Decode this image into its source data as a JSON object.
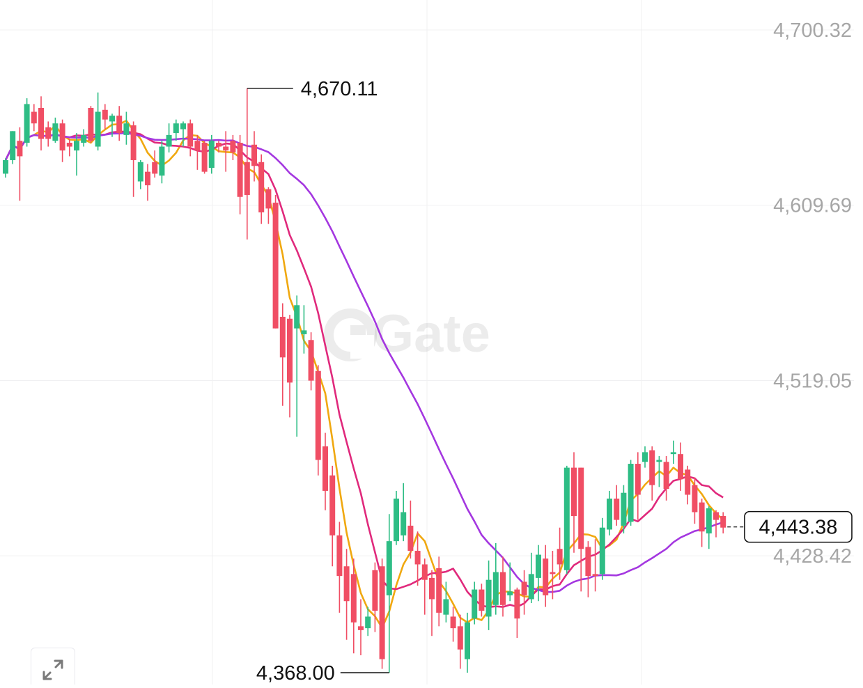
{
  "watermark": "Gate",
  "price_axis_labels": [
    "4,700.32",
    "4,609.69",
    "4,519.05",
    "4,428.42"
  ],
  "high_marker": "4,670.11",
  "low_marker": "4,368.00",
  "current_price": "4,443.38",
  "icons": {
    "expand": "expand-arrows-icon",
    "logo": "gate-logo-icon"
  },
  "colors": {
    "up": "#2ebd85",
    "down": "#f04e64",
    "ma_short": "#f0a80f",
    "ma_mid": "#e0297c",
    "ma_long": "#a437e0",
    "grid": "#f0f0f2",
    "axis_text": "#a6a6a6"
  },
  "chart_data": {
    "type": "candlestick",
    "ylim": [
      4368.0,
      4700.32
    ],
    "y_ticks": [
      4700.32,
      4609.69,
      4519.05,
      4428.42
    ],
    "high": 4670.11,
    "low": 4368.0,
    "last": 4443.38,
    "candles": [
      [
        4626,
        4633,
        4624,
        4634
      ],
      [
        4633,
        4648,
        4631,
        4648
      ],
      [
        4643,
        4635,
        4612,
        4650
      ],
      [
        4642,
        4662,
        4640,
        4665
      ],
      [
        4658,
        4652,
        4648,
        4662
      ],
      [
        4660,
        4644,
        4638,
        4666
      ],
      [
        4650,
        4644,
        4640,
        4653
      ],
      [
        4643,
        4652,
        4642,
        4655
      ],
      [
        4652,
        4638,
        4632,
        4654
      ],
      [
        4642,
        4640,
        4635,
        4644
      ],
      [
        4638,
        4643,
        4625,
        4647
      ],
      [
        4642,
        4646,
        4640,
        4649
      ],
      [
        4660,
        4643,
        4642,
        4661
      ],
      [
        4640,
        4658,
        4638,
        4668
      ],
      [
        4659,
        4654,
        4649,
        4662
      ],
      [
        4653,
        4656,
        4645,
        4657
      ],
      [
        4656,
        4647,
        4643,
        4661
      ],
      [
        4646,
        4652,
        4641,
        4658
      ],
      [
        4651,
        4633,
        4614,
        4653
      ],
      [
        4622,
        4632,
        4618,
        4633
      ],
      [
        4627,
        4620,
        4612,
        4631
      ],
      [
        4632,
        4626,
        4624,
        4638
      ],
      [
        4625,
        4640,
        4621,
        4643
      ],
      [
        4640,
        4646,
        4637,
        4652
      ],
      [
        4647,
        4652,
        4643,
        4654
      ],
      [
        4649,
        4652,
        4640,
        4653
      ],
      [
        4652,
        4640,
        4635,
        4654
      ],
      [
        4643,
        4638,
        4628,
        4646
      ],
      [
        4642,
        4627,
        4626,
        4643
      ],
      [
        4629,
        4643,
        4626,
        4646
      ],
      [
        4642,
        4640,
        4637,
        4643
      ],
      [
        4640,
        4638,
        4627,
        4648
      ],
      [
        4643,
        4637,
        4633,
        4646
      ],
      [
        4642,
        4614,
        4605,
        4646
      ],
      [
        4632,
        4615,
        4592,
        4670.11
      ],
      [
        4641,
        4630,
        4622,
        4648
      ],
      [
        4632,
        4606,
        4600,
        4636
      ],
      [
        4618,
        4608,
        4600,
        4619
      ],
      [
        4611,
        4546,
        4546,
        4615
      ],
      [
        4552,
        4531,
        4506,
        4559
      ],
      [
        4551,
        4518,
        4500,
        4553
      ],
      [
        4546,
        4558,
        4490,
        4563
      ],
      [
        4543,
        4545,
        4533,
        4558
      ],
      [
        4540,
        4519,
        4514,
        4544
      ],
      [
        4524,
        4478,
        4470,
        4527
      ],
      [
        4485,
        4462,
        4452,
        4492
      ],
      [
        4470,
        4439,
        4423,
        4475
      ],
      [
        4439,
        4418,
        4399,
        4446
      ],
      [
        4423,
        4405,
        4385,
        4432
      ],
      [
        4419,
        4394,
        4378,
        4427
      ],
      [
        4392,
        4390,
        4377,
        4406
      ],
      [
        4391,
        4397,
        4387,
        4402
      ],
      [
        4421,
        4400,
        4389,
        4425
      ],
      [
        4423,
        4375,
        4370,
        4427
      ],
      [
        4408,
        4436,
        4368,
        4450
      ],
      [
        4436,
        4458,
        4434,
        4462
      ],
      [
        4439,
        4451,
        4436,
        4466
      ],
      [
        4444,
        4431,
        4427,
        4457
      ],
      [
        4431,
        4424,
        4413,
        4441
      ],
      [
        4424,
        4416,
        4398,
        4427
      ],
      [
        4417,
        4406,
        4387,
        4421
      ],
      [
        4422,
        4399,
        4392,
        4428
      ],
      [
        4398,
        4406,
        4394,
        4415
      ],
      [
        4397,
        4391,
        4384,
        4402
      ],
      [
        4392,
        4380,
        4370,
        4398
      ],
      [
        4375,
        4394,
        4368,
        4399
      ],
      [
        4396,
        4411,
        4393,
        4415
      ],
      [
        4411,
        4400,
        4397,
        4414
      ],
      [
        4397,
        4416,
        4390,
        4426
      ],
      [
        4403,
        4420,
        4398,
        4435
      ],
      [
        4420,
        4403,
        4397,
        4428
      ],
      [
        4408,
        4410,
        4405,
        4425
      ],
      [
        4411,
        4396,
        4386,
        4412
      ],
      [
        4415,
        4408,
        4398,
        4421
      ],
      [
        4406,
        4419,
        4404,
        4430
      ],
      [
        4417,
        4429,
        4405,
        4434
      ],
      [
        4427,
        4408,
        4402,
        4434
      ],
      [
        4420,
        4419,
        4406,
        4431
      ],
      [
        4432,
        4424,
        4416,
        4443
      ],
      [
        4421,
        4474,
        4419,
        4475
      ],
      [
        4474,
        4449,
        4430,
        4482
      ],
      [
        4474,
        4432,
        4410,
        4474
      ],
      [
        4433,
        4418,
        4407,
        4436
      ],
      [
        4419,
        4418,
        4410,
        4437
      ],
      [
        4419,
        4443,
        4416,
        4448
      ],
      [
        4442,
        4458,
        4439,
        4462
      ],
      [
        4458,
        4447,
        4444,
        4465
      ],
      [
        4444,
        4461,
        4440,
        4465
      ],
      [
        4446,
        4476,
        4444,
        4478
      ],
      [
        4476,
        4460,
        4447,
        4482
      ],
      [
        4477,
        4482,
        4474,
        4485
      ],
      [
        4483,
        4465,
        4457,
        4485
      ],
      [
        4477,
        4478,
        4464,
        4480
      ],
      [
        4477,
        4463,
        4457,
        4480
      ],
      [
        4481,
        4482,
        4476,
        4488
      ],
      [
        4481,
        4468,
        4462,
        4487
      ],
      [
        4473,
        4460,
        4455,
        4475
      ],
      [
        4465,
        4451,
        4445,
        4469
      ],
      [
        4456,
        4441,
        4433,
        4458
      ],
      [
        4440,
        4453,
        4432,
        4454
      ],
      [
        4451,
        4447,
        4438,
        4452
      ],
      [
        4449,
        4443,
        4440,
        4451
      ]
    ]
  }
}
